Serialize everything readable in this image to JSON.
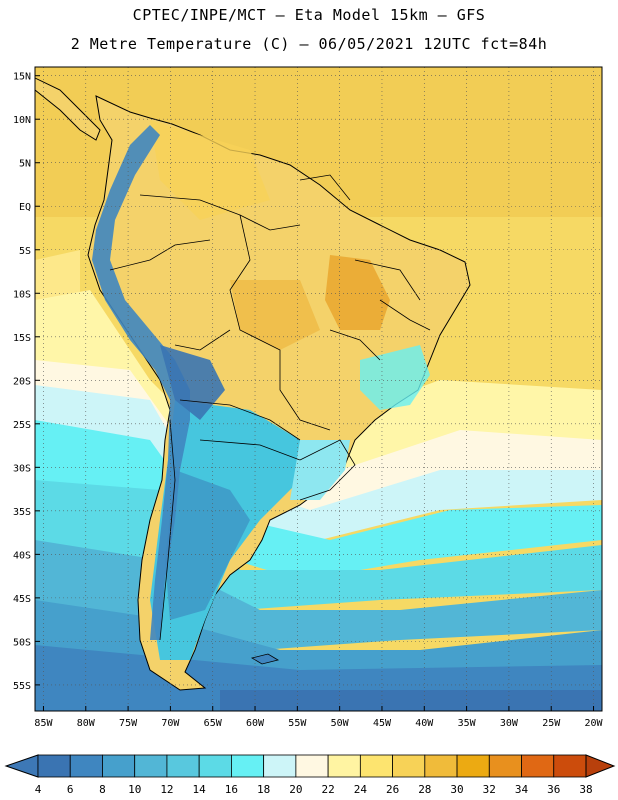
{
  "header": {
    "line1": "CPTEC/INPE/MCT –  Eta Model 15km – GFS",
    "line2": "2 Metre Temperature (C) – 06/05/2021 12UTC fct=84h"
  },
  "map": {
    "lat_labels": [
      "15N",
      "10N",
      "5N",
      "EQ",
      "5S",
      "10S",
      "15S",
      "20S",
      "25S",
      "30S",
      "35S",
      "40S",
      "45S",
      "50S",
      "55S"
    ],
    "lon_labels": [
      "85W",
      "80W",
      "75W",
      "70W",
      "65W",
      "60W",
      "55W",
      "50W",
      "45W",
      "40W",
      "35W",
      "30W",
      "25W",
      "20W"
    ],
    "extent": {
      "lon": [
        -86,
        -19
      ],
      "lat": [
        -58,
        16
      ]
    },
    "gridlines": "dotted"
  },
  "colorbar": {
    "labels": [
      "4",
      "6",
      "8",
      "10",
      "12",
      "14",
      "16",
      "18",
      "20",
      "22",
      "24",
      "26",
      "28",
      "30",
      "32",
      "34",
      "36",
      "38"
    ],
    "low_color": "#3d78b6",
    "high_color": "#b8400c",
    "colors": [
      "#3a74b2",
      "#3f86c0",
      "#46a0cc",
      "#52b6d6",
      "#58c8de",
      "#5cdae6",
      "#66f0f4",
      "#cdf5f8",
      "#fff8e2",
      "#fff4a2",
      "#fde46f",
      "#f7d257",
      "#f0bb3a",
      "#ecaa12",
      "#e8901e",
      "#e06814",
      "#cc4c0c"
    ]
  }
}
